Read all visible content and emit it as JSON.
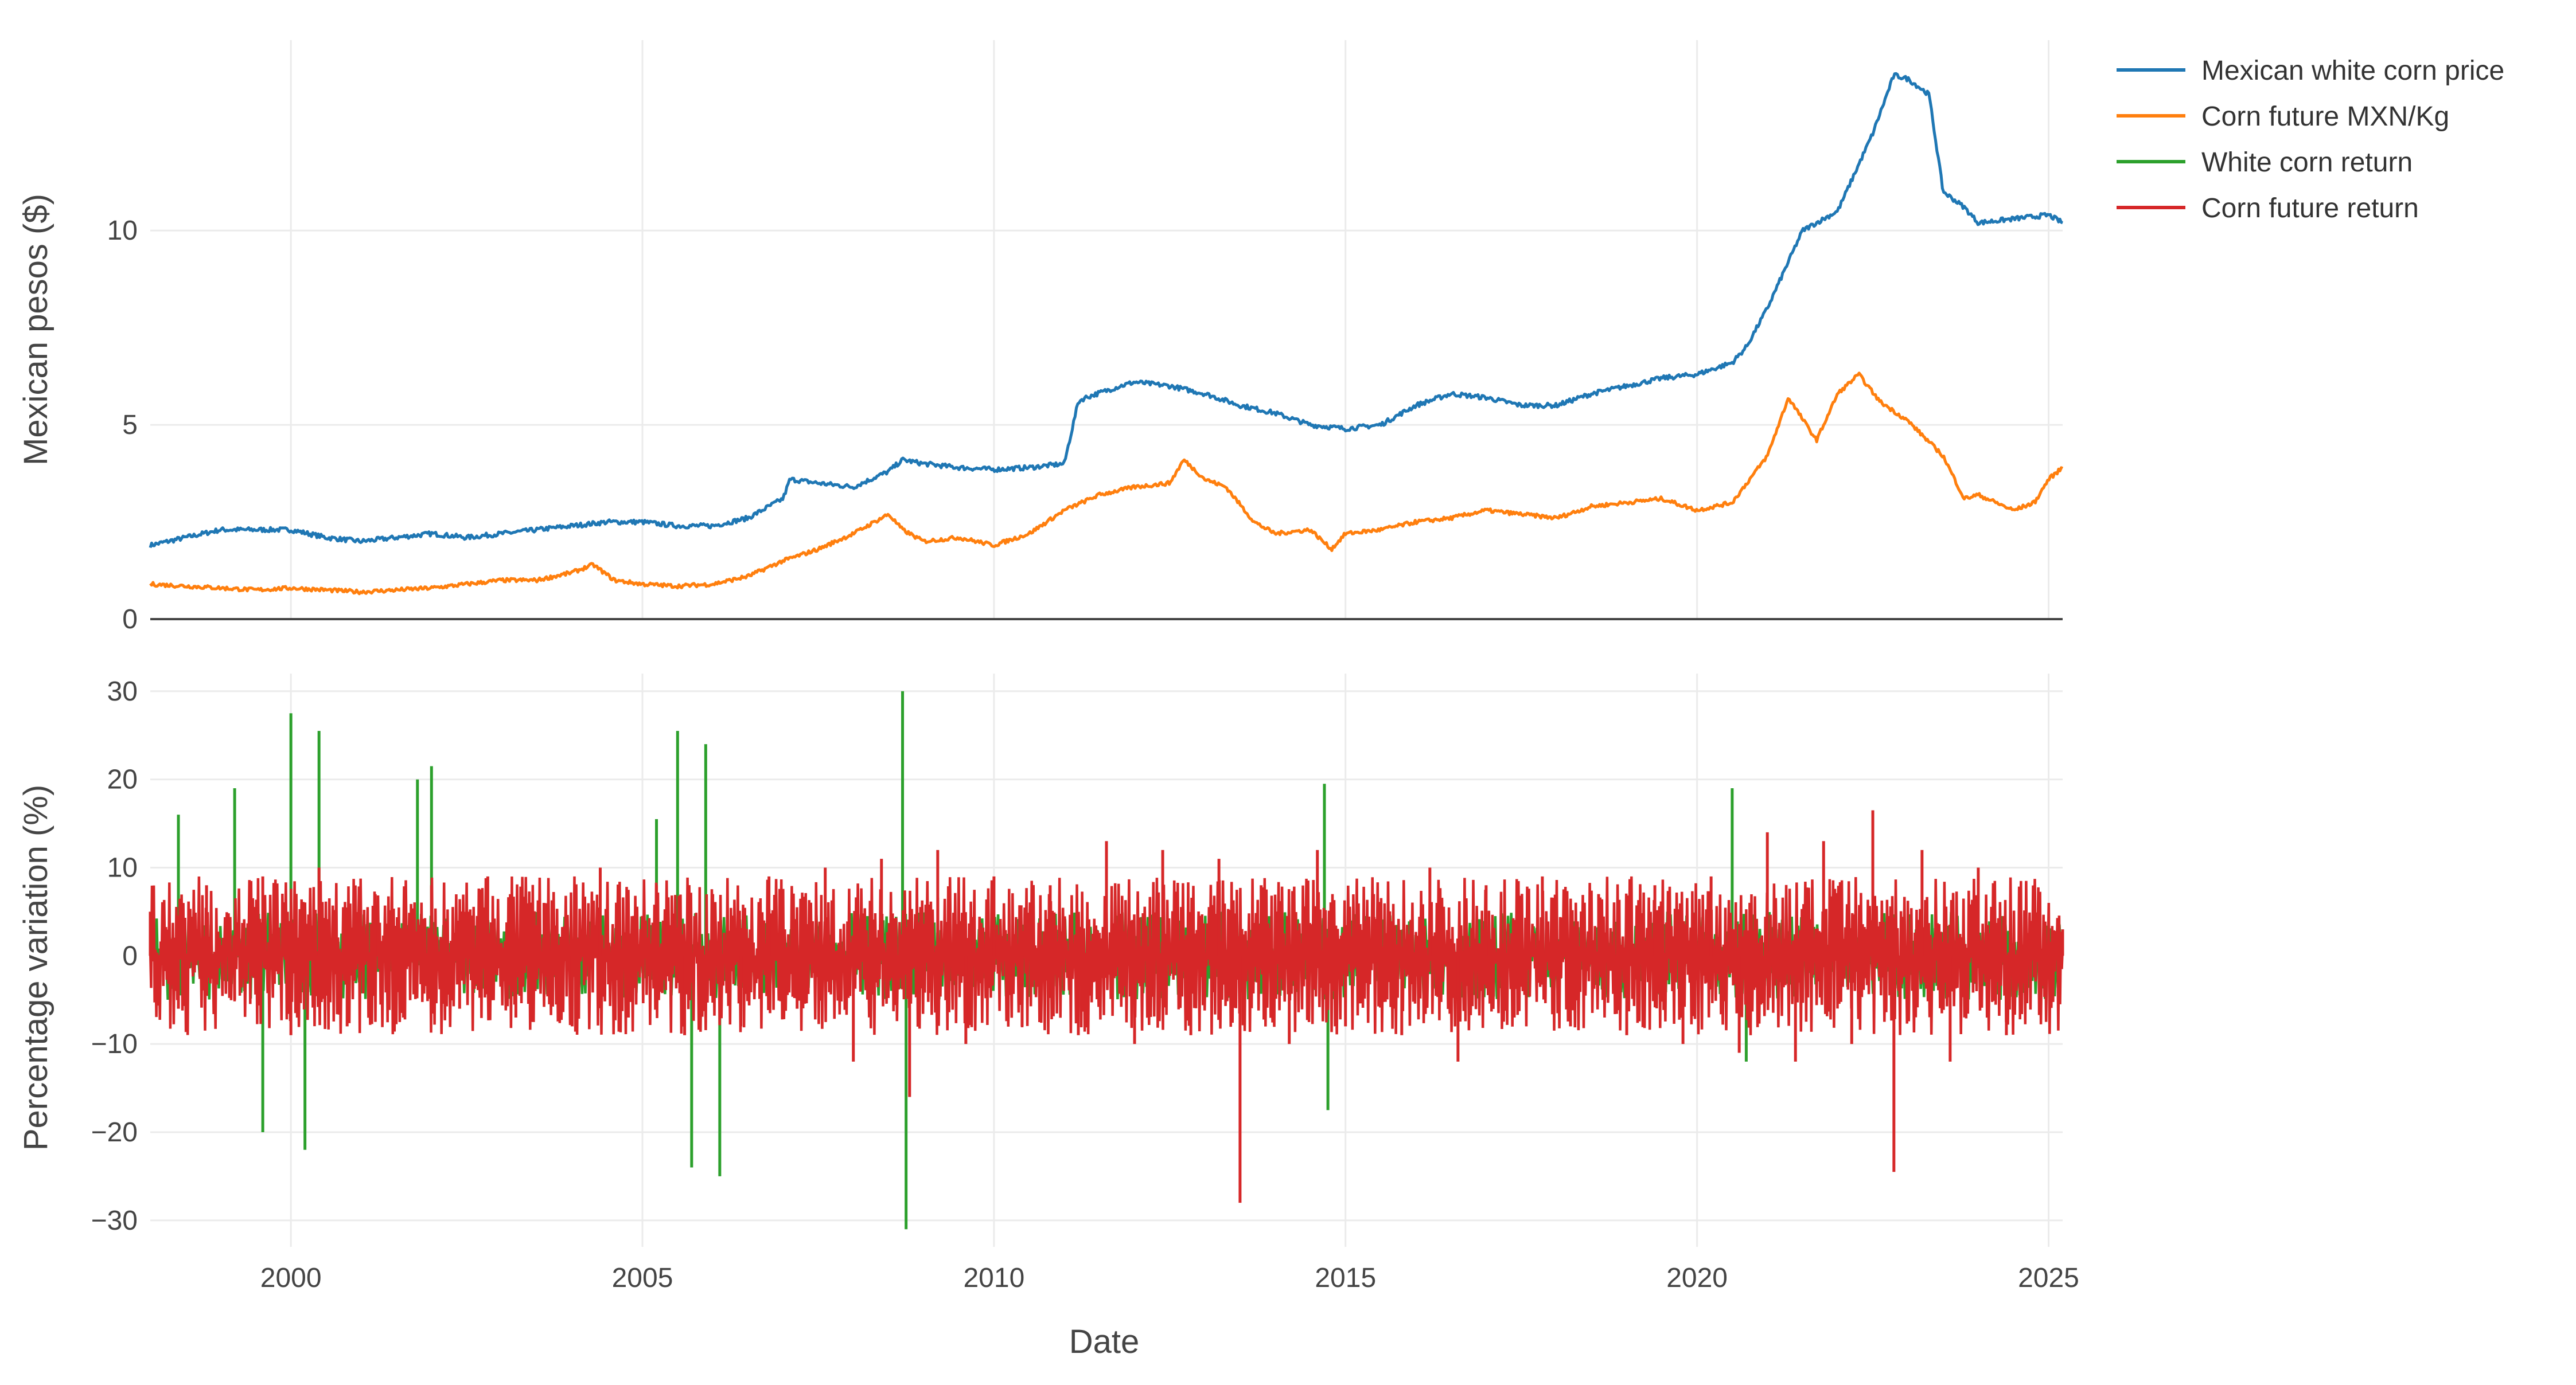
{
  "chart_data": [
    {
      "type": "line",
      "ylabel": "Mexican pesos ($)",
      "xlim": [
        1998.0,
        2025.2
      ],
      "ylim": [
        0,
        14.9
      ],
      "y_ticks": [
        0,
        5,
        10
      ],
      "grid": true,
      "series": [
        {
          "name": "Mexican white corn price",
          "color": "#1f77b4",
          "x": [
            1998.0,
            1998.5,
            1999.0,
            1999.5,
            2000.0,
            2000.5,
            2001.0,
            2001.5,
            2002.0,
            2002.5,
            2003.0,
            2003.5,
            2004.0,
            2004.5,
            2005.0,
            2005.5,
            2006.0,
            2006.5,
            2007.0,
            2007.1,
            2007.5,
            2008.0,
            2008.5,
            2008.7,
            2009.0,
            2009.5,
            2010.0,
            2010.5,
            2011.0,
            2011.2,
            2011.3,
            2011.8,
            2012.0,
            2012.5,
            2013.0,
            2013.5,
            2014.0,
            2014.5,
            2015.0,
            2015.5,
            2016.0,
            2016.5,
            2017.0,
            2017.5,
            2018.0,
            2018.5,
            2019.0,
            2019.5,
            2020.0,
            2020.5,
            2020.7,
            2021.0,
            2021.5,
            2021.8,
            2022.0,
            2022.5,
            2022.8,
            2023.0,
            2023.3,
            2023.5,
            2023.8,
            2024.0,
            2024.5,
            2025.0,
            2025.2
          ],
          "values": [
            1.9,
            2.1,
            2.3,
            2.3,
            2.3,
            2.1,
            2.0,
            2.1,
            2.2,
            2.1,
            2.2,
            2.3,
            2.4,
            2.5,
            2.5,
            2.4,
            2.4,
            2.6,
            3.1,
            3.6,
            3.5,
            3.4,
            3.8,
            4.1,
            4.0,
            3.9,
            3.85,
            3.9,
            4.0,
            5.6,
            5.7,
            6.0,
            6.1,
            6.0,
            5.8,
            5.5,
            5.3,
            5.0,
            4.9,
            5.0,
            5.5,
            5.8,
            5.7,
            5.5,
            5.5,
            5.8,
            6.0,
            6.2,
            6.3,
            6.6,
            7.0,
            8.0,
            10.0,
            10.3,
            10.5,
            12.5,
            14.0,
            13.9,
            13.5,
            11.0,
            10.6,
            10.2,
            10.3,
            10.4,
            10.2
          ]
        },
        {
          "name": "Corn future MXN/Kg",
          "color": "#ff7f0e",
          "x": [
            1998.0,
            1998.5,
            1999.0,
            1999.5,
            2000.0,
            2000.5,
            2001.0,
            2001.5,
            2002.0,
            2002.5,
            2003.0,
            2003.5,
            2004.0,
            2004.3,
            2004.6,
            2005.0,
            2005.5,
            2006.0,
            2006.5,
            2007.0,
            2007.5,
            2008.0,
            2008.5,
            2008.7,
            2009.0,
            2009.5,
            2010.0,
            2010.5,
            2011.0,
            2011.5,
            2012.0,
            2012.5,
            2012.7,
            2013.0,
            2013.3,
            2013.7,
            2014.0,
            2014.5,
            2014.8,
            2015.0,
            2015.5,
            2016.0,
            2016.5,
            2017.0,
            2017.5,
            2018.0,
            2018.5,
            2019.0,
            2019.5,
            2020.0,
            2020.5,
            2021.0,
            2021.3,
            2021.7,
            2022.0,
            2022.3,
            2022.6,
            2023.0,
            2023.5,
            2023.8,
            2024.0,
            2024.5,
            2024.8,
            2025.0,
            2025.2
          ],
          "values": [
            0.9,
            0.85,
            0.8,
            0.75,
            0.8,
            0.75,
            0.7,
            0.75,
            0.8,
            0.9,
            1.0,
            1.0,
            1.2,
            1.4,
            1.0,
            0.9,
            0.85,
            0.9,
            1.1,
            1.5,
            1.8,
            2.2,
            2.7,
            2.3,
            2.0,
            2.1,
            1.9,
            2.2,
            2.8,
            3.2,
            3.4,
            3.5,
            4.1,
            3.6,
            3.4,
            2.5,
            2.2,
            2.3,
            1.8,
            2.2,
            2.3,
            2.5,
            2.6,
            2.8,
            2.7,
            2.6,
            2.9,
            3.0,
            3.1,
            2.8,
            3.0,
            4.2,
            5.7,
            4.6,
            5.8,
            6.3,
            5.6,
            5.1,
            4.2,
            3.1,
            3.2,
            2.8,
            3.0,
            3.6,
            3.9
          ]
        }
      ]
    },
    {
      "type": "line",
      "xlabel": "Date",
      "ylabel": "Percentage variation (%)",
      "xlim": [
        1998.0,
        2025.2
      ],
      "ylim": [
        -33,
        32
      ],
      "y_ticks": [
        -30,
        -20,
        -10,
        0,
        10,
        20,
        30
      ],
      "x_ticks": [
        "2000",
        "2005",
        "2010",
        "2015",
        "2020",
        "2025"
      ],
      "grid": true,
      "series": [
        {
          "name": "White corn return",
          "color": "#2ca02c",
          "x": [
            1998.4,
            1999.2,
            1999.6,
            2000.0,
            2000.2,
            2000.4,
            2001.8,
            2002.0,
            2005.2,
            2005.5,
            2005.7,
            2005.9,
            2006.1,
            2008.7,
            2008.75,
            2014.7,
            2014.75,
            2020.5,
            2020.7
          ],
          "values": [
            16,
            19,
            -20,
            27.5,
            -22,
            25.5,
            20,
            21.5,
            15.5,
            25.5,
            -24,
            24,
            -25,
            30,
            -31,
            19.5,
            -17.5,
            19,
            -12
          ]
        },
        {
          "name": "Corn future return",
          "color": "#d62728",
          "x": [
            1998.0,
            1998.4,
            1998.8,
            1999.2,
            1999.6,
            2000.0,
            2000.4,
            2000.8,
            2001.2,
            2001.6,
            2002.0,
            2002.4,
            2002.8,
            2003.2,
            2003.6,
            2004.0,
            2004.4,
            2004.8,
            2005.2,
            2005.6,
            2006.0,
            2006.4,
            2006.8,
            2007.2,
            2007.6,
            2008.0,
            2008.4,
            2008.8,
            2009.2,
            2009.6,
            2010.0,
            2010.4,
            2010.8,
            2011.2,
            2011.6,
            2012.0,
            2012.4,
            2012.8,
            2013.2,
            2013.5,
            2013.8,
            2014.2,
            2014.6,
            2015.0,
            2015.4,
            2015.8,
            2016.2,
            2016.6,
            2017.0,
            2017.4,
            2017.8,
            2018.2,
            2018.6,
            2019.0,
            2019.4,
            2019.8,
            2020.2,
            2020.6,
            2021.0,
            2021.4,
            2021.8,
            2022.2,
            2022.5,
            2022.8,
            2023.2,
            2023.6,
            2024.0,
            2024.4,
            2024.8,
            2025.2
          ],
          "values": [
            5,
            -6,
            8,
            -5,
            9,
            -9,
            10,
            -8,
            7,
            -7,
            8,
            -6,
            9,
            -7,
            6,
            -8,
            10,
            -7,
            8,
            -9,
            7,
            -8,
            9,
            -6,
            10,
            -12,
            11,
            -16,
            12,
            -10,
            9,
            -8,
            8,
            -9,
            13,
            -10,
            12,
            -9,
            11,
            -28,
            8,
            -10,
            12,
            -8,
            7,
            -9,
            10,
            -12,
            8,
            -7,
            9,
            -8,
            7,
            -9,
            8,
            -10,
            9,
            -11,
            14,
            -12,
            13,
            -10,
            16.5,
            -24.5,
            12,
            -12,
            10,
            -9,
            8,
            3
          ]
        }
      ]
    }
  ],
  "figure": {
    "legend_position": "top-right",
    "legend": [
      {
        "label": "Mexican white corn price",
        "color": "#1f77b4"
      },
      {
        "label": "Corn future MXN/Kg",
        "color": "#ff7f0e"
      },
      {
        "label": "White corn return",
        "color": "#2ca02c"
      },
      {
        "label": "Corn future return",
        "color": "#d62728"
      }
    ],
    "top_y_tick_labels": [
      "0",
      "5",
      "10"
    ],
    "bottom_y_tick_labels": [
      "−30",
      "−20",
      "−10",
      "0",
      "10",
      "20",
      "30"
    ],
    "x_tick_labels": [
      "2000",
      "2005",
      "2010",
      "2015",
      "2020",
      "2025"
    ],
    "top_ylabel": "Mexican pesos ($)",
    "bottom_ylabel": "Percentage variation (%)",
    "xlabel": "Date"
  }
}
